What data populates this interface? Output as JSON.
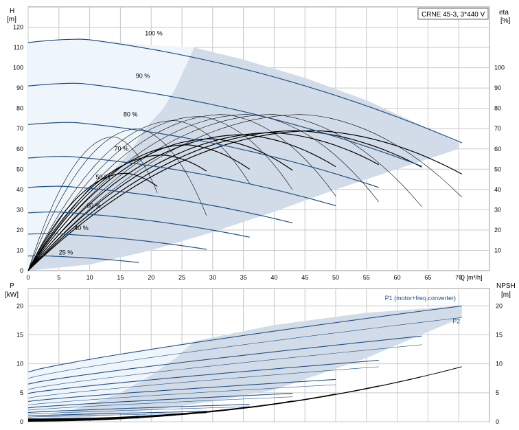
{
  "colors": {
    "band_light": "#eef5fb",
    "band_mid": "#d2dce8",
    "curve_blue": "#1f4f86",
    "curve_thin": "#000000",
    "grid": "#c8c8c8",
    "frame": "#999999"
  },
  "chart_data": [
    {
      "type": "line",
      "title": "CRNE 45-3, 3*440 V",
      "xlabel": "Q [m³/h]",
      "ylabel_left_line1": "H",
      "ylabel_left_line2": "[m]",
      "ylabel_right_line1": "eta",
      "ylabel_right_line2": "[%]",
      "xlim": [
        0,
        75
      ],
      "ylim_left": [
        0,
        130
      ],
      "ylim_right": [
        0,
        130
      ],
      "x_ticks": [
        0,
        5,
        10,
        15,
        20,
        25,
        30,
        35,
        40,
        45,
        50,
        55,
        60,
        65,
        70
      ],
      "y_ticks_left": [
        10,
        20,
        30,
        40,
        50,
        60,
        70,
        80,
        90,
        100,
        110,
        120
      ],
      "y_ticks_right": [
        10,
        20,
        30,
        40,
        50,
        60,
        70,
        80,
        90,
        100
      ],
      "grid": true,
      "operating_area": [
        [
          0,
          0
        ],
        [
          0,
          112
        ],
        [
          10,
          114
        ],
        [
          20,
          111
        ],
        [
          27,
          110
        ],
        [
          35,
          104
        ],
        [
          45,
          95
        ],
        [
          55,
          84
        ],
        [
          65,
          70
        ],
        [
          70,
          63
        ],
        [
          70,
          60
        ],
        [
          60,
          50
        ],
        [
          50,
          40
        ],
        [
          40,
          29
        ],
        [
          30,
          19
        ],
        [
          20,
          10
        ],
        [
          10,
          3
        ],
        [
          0,
          0
        ]
      ],
      "full_speed_area": [
        [
          0,
          0
        ],
        [
          0,
          112
        ],
        [
          10,
          114
        ],
        [
          20,
          111
        ],
        [
          27,
          110
        ],
        [
          24,
          90
        ],
        [
          22,
          80
        ],
        [
          19,
          70
        ],
        [
          17,
          60
        ],
        [
          14,
          50
        ],
        [
          11,
          40
        ],
        [
          8,
          30
        ],
        [
          6,
          20
        ],
        [
          3,
          10
        ],
        [
          0,
          0
        ]
      ],
      "hq_curves": [
        {
          "label": "100 %",
          "qmax": 70.5,
          "h0": 112.4,
          "a": 0.4,
          "b": 0.0
        },
        {
          "label": "90 %",
          "qmax": 64,
          "h0": 91,
          "a": 0.36,
          "b": 0.0
        },
        {
          "label": "80 %",
          "qmax": 57,
          "h0": 72,
          "a": 0.32,
          "b": 0.0
        },
        {
          "label": "70 %",
          "qmax": 50,
          "h0": 55.5,
          "a": 0.28,
          "b": 0.0
        },
        {
          "label": "60 %",
          "qmax": 43,
          "h0": 41,
          "a": 0.24,
          "b": 0.0
        },
        {
          "label": "50 %",
          "qmax": 36,
          "h0": 28.5,
          "a": 0.2,
          "b": 0.0
        },
        {
          "label": "40 %",
          "qmax": 29,
          "h0": 18,
          "a": 0.16,
          "b": 0.0
        },
        {
          "label": "25 %",
          "qmax": 18,
          "h0": 7.2,
          "a": 0.1,
          "b": 0.0
        }
      ],
      "hq_end_points": [
        [
          70.5,
          63
        ],
        [
          64,
          51.5
        ],
        [
          57,
          41
        ],
        [
          50,
          32
        ],
        [
          43,
          23.5
        ],
        [
          36,
          16.5
        ],
        [
          29,
          10.5
        ],
        [
          18,
          4
        ]
      ],
      "eta_curves": [
        {
          "qmax": 70.5,
          "peak_q": 47,
          "peak": 69
        },
        {
          "qmax": 64,
          "peak_q": 44,
          "peak": 69
        },
        {
          "qmax": 57,
          "peak_q": 40,
          "peak": 68
        },
        {
          "qmax": 50,
          "peak_q": 35,
          "peak": 67
        },
        {
          "qmax": 43,
          "peak_q": 30,
          "peak": 65
        },
        {
          "qmax": 36,
          "peak_q": 26,
          "peak": 62
        },
        {
          "qmax": 29,
          "peak_q": 22,
          "peak": 57
        },
        {
          "qmax": 21,
          "peak_q": 16,
          "peak": 48
        }
      ],
      "eta_thin_curves": [
        {
          "qmax": 70.5,
          "peak_q": 45,
          "peak": 77
        },
        {
          "qmax": 64,
          "peak_q": 40,
          "peak": 77
        },
        {
          "qmax": 57,
          "peak_q": 36,
          "peak": 77
        },
        {
          "qmax": 50,
          "peak_q": 32,
          "peak": 77
        },
        {
          "qmax": 43,
          "peak_q": 28,
          "peak": 76
        },
        {
          "qmax": 36,
          "peak_q": 24,
          "peak": 74
        },
        {
          "qmax": 29,
          "peak_q": 18,
          "peak": 70
        },
        {
          "qmax": 21,
          "peak_q": 14,
          "peak": 66
        }
      ],
      "speed_labels": [
        {
          "text": "100 %",
          "q": 19,
          "h": 116
        },
        {
          "text": "90 %",
          "q": 17.5,
          "h": 95
        },
        {
          "text": "80 %",
          "q": 15.5,
          "h": 76
        },
        {
          "text": "70 %",
          "q": 14,
          "h": 59
        },
        {
          "text": "50 %",
          "q": 11,
          "h": 45
        },
        {
          "text": "60 %",
          "q": 9.5,
          "h": 31
        },
        {
          "text": "40 %",
          "q": 7.5,
          "h": 20
        },
        {
          "text": "25 %",
          "q": 5,
          "h": 8
        }
      ]
    },
    {
      "type": "line",
      "ylabel_left_line1": "P",
      "ylabel_left_line2": "[kW]",
      "ylabel_right_line1": "NPSH",
      "ylabel_right_line2": "[m]",
      "xlim": [
        0,
        75
      ],
      "ylim_left": [
        0,
        23
      ],
      "ylim_right": [
        0,
        23
      ],
      "x_ticks": [
        0,
        5,
        10,
        15,
        20,
        25,
        30,
        35,
        40,
        45,
        50,
        55,
        60,
        65,
        70
      ],
      "y_ticks_left": [
        0,
        5,
        10,
        15,
        20
      ],
      "y_ticks_right": [
        0,
        5,
        10,
        15,
        20
      ],
      "grid": true,
      "series_labels": [
        {
          "text": "P1 (motor+freq.converter)",
          "q": 58,
          "p": 21
        },
        {
          "text": "P2",
          "q": 69,
          "p": 17
        }
      ],
      "power_area": [
        [
          0,
          0
        ],
        [
          0,
          8.6
        ],
        [
          27,
          13.9
        ],
        [
          40,
          16.7
        ],
        [
          55,
          18.8
        ],
        [
          70.5,
          20
        ],
        [
          70.5,
          18
        ],
        [
          55,
          11
        ],
        [
          40,
          5.5
        ],
        [
          30,
          3.5
        ],
        [
          20,
          2
        ],
        [
          10,
          0.8
        ],
        [
          0,
          0
        ]
      ],
      "full_area": [
        [
          0,
          0
        ],
        [
          0,
          8.6
        ],
        [
          27,
          13.9
        ],
        [
          24,
          11
        ],
        [
          20,
          8
        ],
        [
          15,
          5
        ],
        [
          10,
          3
        ],
        [
          5,
          1.2
        ],
        [
          0,
          0
        ]
      ],
      "p1_curves": [
        {
          "qmax": 70.5,
          "p0": 8.6,
          "p1": 20.0
        },
        {
          "qmax": 64,
          "p0": 6.5,
          "p1": 14.8
        },
        {
          "qmax": 57,
          "p0": 4.9,
          "p1": 10.6
        },
        {
          "qmax": 50,
          "p0": 3.5,
          "p1": 7.3
        },
        {
          "qmax": 43,
          "p0": 2.4,
          "p1": 4.9
        },
        {
          "qmax": 36,
          "p0": 1.6,
          "p1": 3.0
        },
        {
          "qmax": 29,
          "p0": 1.0,
          "p1": 1.8
        },
        {
          "qmax": 18,
          "p0": 0.4,
          "p1": 0.7
        }
      ],
      "p2_curves": [
        {
          "qmax": 70.5,
          "p0": 7.5,
          "p1": 18.0
        },
        {
          "qmax": 64,
          "p0": 5.6,
          "p1": 13.3
        },
        {
          "qmax": 57,
          "p0": 4.1,
          "p1": 9.5
        },
        {
          "qmax": 50,
          "p0": 2.9,
          "p1": 6.4
        },
        {
          "qmax": 43,
          "p0": 2.0,
          "p1": 4.3
        },
        {
          "qmax": 36,
          "p0": 1.3,
          "p1": 2.6
        },
        {
          "qmax": 29,
          "p0": 0.8,
          "p1": 1.5
        },
        {
          "qmax": 18,
          "p0": 0.3,
          "p1": 0.6
        }
      ],
      "npsh_curves": [
        {
          "qmax": 70.5,
          "n0": 0.5,
          "n1": 9.5
        },
        {
          "qmax": 64,
          "n0": 0.4,
          "n1": 7.8
        },
        {
          "qmax": 57,
          "n0": 0.3,
          "n1": 6.2
        },
        {
          "qmax": 50,
          "n0": 0.3,
          "n1": 4.8
        },
        {
          "qmax": 43,
          "n0": 0.2,
          "n1": 3.6
        },
        {
          "qmax": 36,
          "n0": 0.2,
          "n1": 2.6
        },
        {
          "qmax": 29,
          "n0": 0.1,
          "n1": 1.8
        },
        {
          "qmax": 18,
          "n0": 0.1,
          "n1": 1.0
        }
      ]
    }
  ]
}
